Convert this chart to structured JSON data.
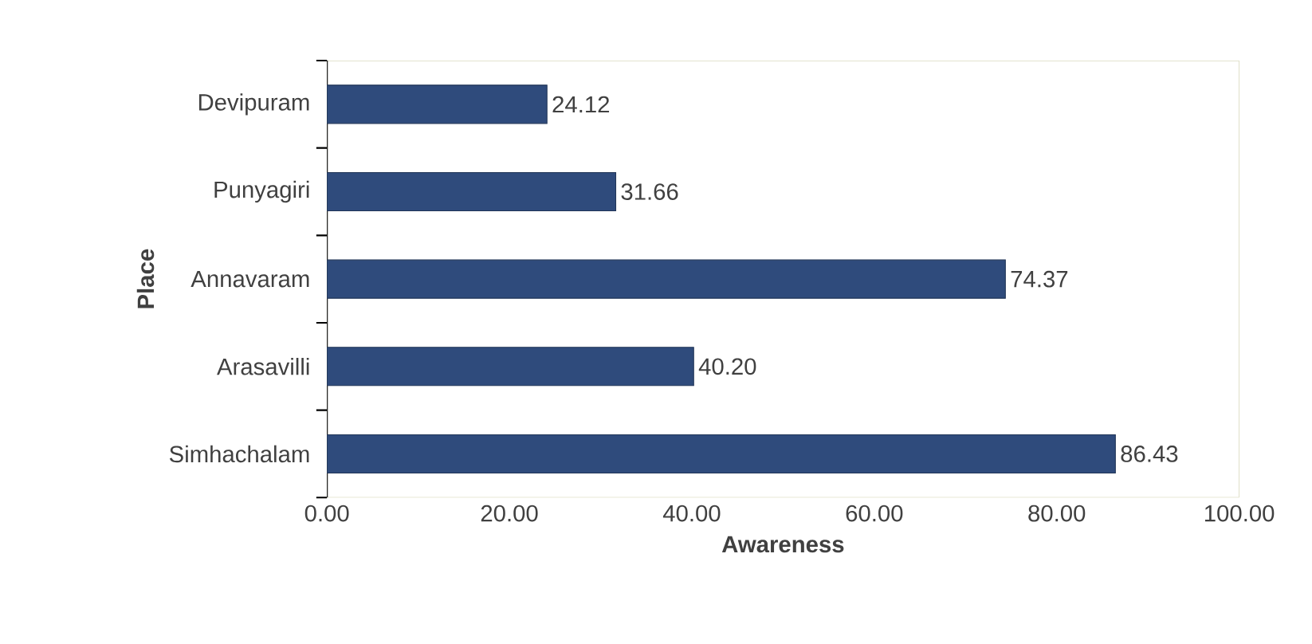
{
  "chart_data": {
    "type": "bar",
    "orientation": "horizontal",
    "xlabel": "Awareness",
    "ylabel": "Place",
    "categories": [
      "Devipuram",
      "Punyagiri",
      "Annavaram",
      "Arasavilli",
      "Simhachalam"
    ],
    "values": [
      24.12,
      31.66,
      74.37,
      40.2,
      86.43
    ],
    "value_labels": [
      "24.12",
      "31.66",
      "74.37",
      "40.20",
      "86.43"
    ],
    "color": "#2f4b7c",
    "xlim": [
      0,
      100
    ],
    "xticks": [
      {
        "value": 0,
        "label": "0.00"
      },
      {
        "value": 20,
        "label": "20.00"
      },
      {
        "value": 40,
        "label": "40.00"
      },
      {
        "value": 60,
        "label": "60.00"
      },
      {
        "value": 80,
        "label": "80.00"
      },
      {
        "value": 100,
        "label": "100.00"
      }
    ],
    "grid": false
  }
}
